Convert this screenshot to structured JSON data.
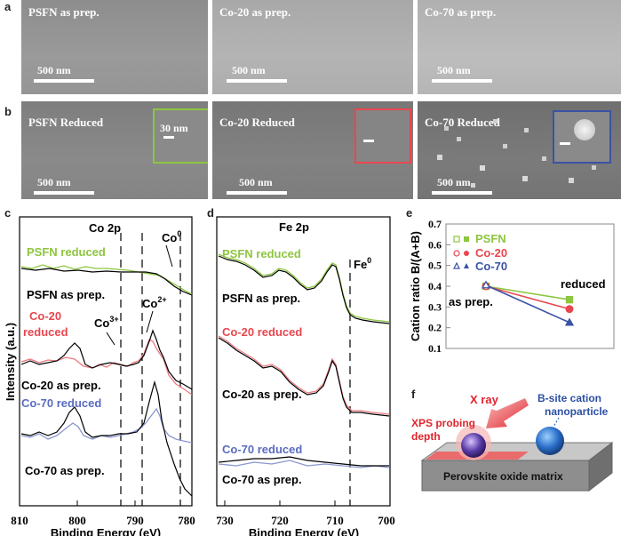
{
  "panels": {
    "a": "a",
    "b": "b",
    "c": "c",
    "d": "d",
    "e": "e",
    "f": "f"
  },
  "sem_as_prep": [
    {
      "title": "PSFN as prep.",
      "scale": "500 nm"
    },
    {
      "title": "Co-20 as prep.",
      "scale": "500 nm"
    },
    {
      "title": "Co-70 as prep.",
      "scale": "500 nm"
    }
  ],
  "sem_reduced": [
    {
      "title": "PSFN Reduced",
      "scale": "500 nm",
      "inset_scale": "30 nm",
      "inset_color": "#8dc63f"
    },
    {
      "title": "Co-20 Reduced",
      "scale": "500 nm",
      "inset_scale": "",
      "inset_color": "#e8474f"
    },
    {
      "title": "Co-70 Reduced",
      "scale": "500 nm",
      "inset_scale": "",
      "inset_color": "#3b53a4"
    }
  ],
  "co2p": {
    "title": "Co 2p",
    "ylabel": "Intensity (a.u.)",
    "xlabel": "Binding Energy (eV)",
    "xticks": [
      "810",
      "800",
      "790",
      "780"
    ],
    "labels": {
      "psfn_red": "PSFN reduced",
      "psfn_prep": "PSFN as prep.",
      "co20_red_1": "Co-20",
      "co20_red_2": "reduced",
      "co3": "Co",
      "co3_sup": "3+",
      "co2": "Co",
      "co2_sup": "2+",
      "co0": "Co",
      "co0_sup": "0",
      "co20_prep": "Co-20 as prep.",
      "co70_red": "Co-70 reduced",
      "co70_prep": "Co-70 as prep."
    }
  },
  "fe2p": {
    "title": "Fe 2p",
    "xlabel": "Binding Energy (eV)",
    "xticks": [
      "730",
      "720",
      "710",
      "700"
    ],
    "labels": {
      "psfn_red": "PSFN reduced",
      "fe0": "Fe",
      "fe0_sup": "0",
      "psfn_prep": "PSFN as prep.",
      "co20_red": "Co-20 reduced",
      "co20_prep": "Co-20 as prep.",
      "co70_red": "Co-70 reduced",
      "co70_prep": "Co-70 as prep."
    }
  },
  "chart_data": {
    "type": "line",
    "ylabel": "Cation ratio B/(A+B)",
    "ylim": [
      0.1,
      0.7
    ],
    "yticks": [
      "0.7",
      "0.6",
      "0.5",
      "0.4",
      "0.3",
      "0.2",
      "0.1"
    ],
    "annotations": {
      "as_prep": "as prep.",
      "reduced": "reduced"
    },
    "series": [
      {
        "name": "PSFN",
        "color": "#8dc63f",
        "values": [
          0.4,
          0.335
        ]
      },
      {
        "name": "Co-20",
        "color": "#e8474f",
        "values": [
          0.4,
          0.29
        ]
      },
      {
        "name": "Co-70",
        "color": "#3b53a4",
        "values": [
          0.405,
          0.225
        ]
      }
    ]
  },
  "schematic": {
    "xray": "X ray",
    "xps_1": "XPS probing",
    "xps_2": "depth",
    "bsite_1": "B-site cation",
    "bsite_2": "nanoparticle",
    "matrix": "Perovskite oxide matrix"
  }
}
